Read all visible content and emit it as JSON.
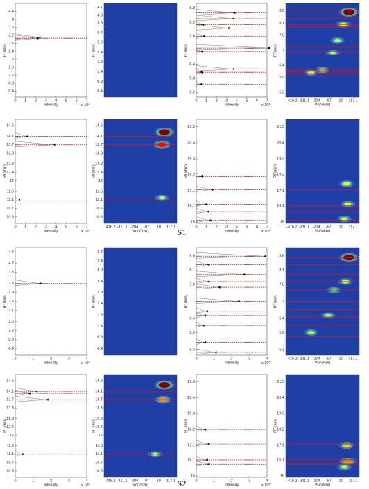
{
  "panel_labels": [
    "S1",
    "S2"
  ],
  "chart_data": [
    {
      "type": "line",
      "ylabel": "RT(min)",
      "xlabel": "Intensity",
      "scale_base": "x 10",
      "scale_exp": 4,
      "ylim": [
        0.1,
        4.8
      ],
      "yticks": [
        0.4,
        0.8,
        1.2,
        1.6,
        2,
        2.4,
        2.8,
        3.2,
        3.6,
        4,
        4.4
      ],
      "xlim": [
        0,
        7
      ],
      "xticks": [
        0,
        1,
        2,
        3,
        4,
        5,
        6,
        7
      ],
      "markers": [
        3.1,
        3.05
      ],
      "marker_intensity": [
        2.2,
        2.0
      ]
    },
    {
      "type": "heatmap",
      "ylabel": "RT(min)",
      "ylim": [
        0.1,
        4.9
      ],
      "yticks": [
        0.4,
        0.9,
        1.4,
        1.9,
        2.4,
        2.9,
        3.4,
        3.9,
        4.3,
        4.7
      ],
      "xlim": [
        -470,
        170
      ],
      "markers": [],
      "spots_rt": [],
      "spots_vc": [],
      "spots_level": []
    },
    {
      "type": "line",
      "ylabel": "RT(min)",
      "xlabel": "Intensity",
      "scale_base": "x 10",
      "scale_exp": 4,
      "ylim": [
        5,
        9
      ],
      "yticks": [
        5.2,
        5.8,
        6.4,
        7,
        7.6,
        8.2,
        8.8
      ],
      "xlim": [
        0,
        7
      ],
      "xticks": [
        0,
        1,
        2,
        3,
        4,
        5,
        6,
        7
      ],
      "markers": [
        8.6,
        8.35,
        8.1,
        7.95,
        7.6,
        7.1,
        6.95,
        6.2,
        6.1,
        6.05,
        5.55
      ],
      "marker_intensity": [
        3.6,
        3.5,
        0.5,
        3.0,
        0.6,
        7.0,
        0.4,
        3.5,
        0.3,
        0.4,
        0.3
      ]
    },
    {
      "type": "heatmap",
      "ylabel": "RT(min)",
      "xlabel": "Vc(V/cm)",
      "ylim": [
        5.1,
        8.9
      ],
      "yticks": [
        5.3,
        5.9,
        6.4,
        7,
        7.6,
        8.1,
        8.6
      ],
      "xlim": [
        -470,
        170
      ],
      "xticks": [
        -416.2,
        -311.1,
        -204,
        -97,
        10,
        117.1
      ],
      "markers": [
        8.55,
        8.3,
        8.05,
        7.95,
        7.15,
        6.95,
        6.2,
        6.15,
        6.05
      ],
      "spots_rt": [
        8.55,
        8.05,
        7.4,
        6.9,
        6.2,
        6.1
      ],
      "spots_vc": [
        80,
        30,
        -20,
        -60,
        -150,
        -250
      ],
      "spots_level": [
        1.0,
        0.45,
        0.3,
        0.3,
        0.35,
        0.3
      ]
    },
    {
      "type": "line",
      "ylabel": "RT(min)",
      "xlabel": "Intensity",
      "scale_base": "x 10",
      "scale_exp": 4,
      "ylim": [
        10,
        14.9
      ],
      "yticks": [
        10.3,
        10.7,
        11.1,
        11.5,
        12,
        12.4,
        12.8,
        13.3,
        13.7,
        14.1,
        14.6
      ],
      "xlim": [
        0,
        7
      ],
      "xticks": [
        0,
        1,
        2,
        3,
        4,
        5,
        6,
        7
      ],
      "markers": [
        14.1,
        13.7,
        11.1
      ],
      "marker_intensity": [
        1.0,
        3.7,
        0.2
      ]
    },
    {
      "type": "heatmap",
      "ylabel": "RT(min)",
      "xlabel": "Vc(V/cm)",
      "ylim": [
        10,
        14.9
      ],
      "yticks": [
        10.3,
        10.7,
        11.1,
        11.5,
        12,
        12.4,
        12.8,
        13.3,
        13.7,
        14.1,
        14.6
      ],
      "xlim": [
        -470,
        170
      ],
      "xticks": [
        -416.2,
        -311.1,
        -204,
        -97,
        10,
        117.1
      ],
      "markers": [
        14.1,
        13.7,
        11.1
      ],
      "spots_rt": [
        14.3,
        13.7,
        11.2
      ],
      "spots_vc": [
        60,
        40,
        40
      ],
      "spots_level": [
        1.0,
        0.8,
        0.3
      ]
    },
    {
      "type": "line",
      "ylabel": "RT(min)",
      "xlabel": "Intensity",
      "scale_base": "x 10",
      "scale_exp": 4,
      "ylim": [
        14.9,
        22
      ],
      "yticks": [
        15,
        16.1,
        17.1,
        18.2,
        19.3,
        20.4,
        21.5
      ],
      "xlim": [
        0,
        7
      ],
      "xticks": [
        0,
        1,
        2,
        3,
        4,
        5,
        6,
        7
      ],
      "markers": [
        18.1,
        17.2,
        16.2,
        15.7,
        15.1
      ],
      "marker_intensity": [
        0.4,
        1.4,
        0.8,
        1.0,
        1.2
      ]
    },
    {
      "type": "heatmap",
      "ylabel": "RT(min)",
      "xlabel": "Vc(V/cm)",
      "ylim": [
        14.9,
        22
      ],
      "yticks": [
        15,
        16.1,
        17.1,
        18.2,
        19.3,
        20.4,
        21.5
      ],
      "xlim": [
        -470,
        170
      ],
      "xticks": [
        -416.2,
        -311.1,
        -204,
        -97,
        10,
        117.1
      ],
      "markers": [
        17.2,
        16.1,
        15.7,
        15.1
      ],
      "spots_rt": [
        17.6,
        16.2,
        15.2
      ],
      "spots_vc": [
        60,
        70,
        40
      ],
      "spots_level": [
        0.4,
        0.4,
        0.3
      ]
    },
    {
      "type": "line",
      "ylabel": "RT(min)",
      "xlabel": "Intensity",
      "scale_base": "x 10",
      "scale_exp": 5,
      "ylim": [
        0.1,
        4.9
      ],
      "yticks": [
        0.4,
        0.8,
        1.2,
        1.6,
        2.1,
        2.5,
        2.9,
        3.3,
        3.8,
        4.2,
        4.7
      ],
      "xlim": [
        0,
        4
      ],
      "xticks": [
        0,
        1,
        2,
        3,
        4
      ],
      "markers": [
        3.3
      ],
      "marker_intensity": [
        1.3
      ]
    },
    {
      "type": "heatmap",
      "ylabel": "RT(min)",
      "ylim": [
        0.1,
        4.9
      ],
      "yticks": [
        0.4,
        0.9,
        1.4,
        1.9,
        2.4,
        2.9,
        3.4,
        3.9,
        4.3,
        4.7
      ],
      "xlim": [
        -470,
        170
      ],
      "markers": [],
      "spots_rt": [],
      "spots_vc": [],
      "spots_level": []
    },
    {
      "type": "line",
      "ylabel": "RT(min)",
      "xlabel": "Intensity",
      "scale_base": "x 10",
      "scale_exp": 5,
      "ylim": [
        5.1,
        8.9
      ],
      "yticks": [
        5.3,
        5.9,
        6.4,
        7,
        7.6,
        8.1,
        8.6
      ],
      "xlim": [
        0,
        4
      ],
      "xticks": [
        0,
        1,
        2,
        3,
        4
      ],
      "markers": [
        8.6,
        8.3,
        7.95,
        7.7,
        7.5,
        7.0,
        6.65,
        6.5,
        6.15,
        5.55,
        5.2
      ],
      "marker_intensity": [
        3.8,
        0.6,
        2.6,
        0.6,
        1.2,
        2.3,
        0.5,
        0.4,
        0.3,
        0.4,
        1.0
      ]
    },
    {
      "type": "heatmap",
      "ylabel": "RT(min)",
      "xlabel": "Vc(V/cm)",
      "ylim": [
        5.1,
        8.9
      ],
      "yticks": [
        5.3,
        5.9,
        6.4,
        7,
        7.6,
        8.1,
        8.6
      ],
      "xlim": [
        -470,
        170
      ],
      "xticks": [
        -416.2,
        -311.1,
        -204,
        -97,
        10,
        117.1
      ],
      "markers": [
        8.55,
        8.3,
        7.95,
        7.7,
        7.4,
        7.0,
        6.7,
        6.45,
        6.15,
        5.75
      ],
      "spots_rt": [
        8.55,
        7.7,
        7.4,
        6.5,
        5.9
      ],
      "spots_vc": [
        80,
        50,
        -50,
        -100,
        -250
      ],
      "spots_level": [
        1.0,
        0.4,
        0.3,
        0.3,
        0.3
      ]
    },
    {
      "type": "line",
      "ylabel": "RT(min)",
      "xlabel": "Intensity",
      "scale_base": "x 10",
      "scale_exp": 5,
      "ylim": [
        10,
        14.9
      ],
      "yticks": [
        10.3,
        10.7,
        11.1,
        11.5,
        12,
        12.4,
        12.8,
        13.3,
        13.7,
        14.1,
        14.6
      ],
      "xlim": [
        0,
        4
      ],
      "xticks": [
        0,
        1,
        2,
        3,
        4
      ],
      "markers": [
        14.1,
        14.0,
        13.7,
        11.1
      ],
      "marker_intensity": [
        1.1,
        0.7,
        1.7,
        0.3
      ]
    },
    {
      "type": "heatmap",
      "ylabel": "RT(min)",
      "xlabel": "Vc(V/cm)",
      "ylim": [
        10,
        14.9
      ],
      "yticks": [
        10.3,
        10.7,
        11.1,
        11.5,
        12,
        12.4,
        12.8,
        13.3,
        13.7,
        14.1,
        14.6
      ],
      "xlim": [
        -470,
        170
      ],
      "xticks": [
        -416.2,
        -311.1,
        -204,
        -97,
        10,
        117.1
      ],
      "markers": [
        14.1,
        13.7,
        11.1
      ],
      "spots_rt": [
        14.4,
        13.7,
        11.1
      ],
      "spots_vc": [
        60,
        50,
        -20
      ],
      "spots_level": [
        1.0,
        0.6,
        0.3
      ]
    },
    {
      "type": "line",
      "ylabel": "RT(min)",
      "xlabel": "Intensity",
      "scale_base": "x 10",
      "scale_exp": 5,
      "ylim": [
        14.9,
        22
      ],
      "yticks": [
        15,
        16.1,
        17.1,
        18.2,
        19.3,
        20.4,
        21.5
      ],
      "xlim": [
        0,
        4
      ],
      "xticks": [
        0,
        1,
        2,
        3,
        4
      ],
      "markers": [
        18.2,
        17.2,
        16.1,
        15.8
      ],
      "marker_intensity": [
        0.4,
        0.6,
        0.5,
        0.6
      ]
    },
    {
      "type": "heatmap",
      "ylabel": "RT(min)",
      "xlabel": "Vc(V/cm)",
      "ylim": [
        14.9,
        22
      ],
      "yticks": [
        15,
        16.1,
        17.1,
        18.2,
        19.3,
        20.4,
        21.5
      ],
      "xlim": [
        -470,
        170
      ],
      "xticks": [
        -416.2,
        -311.1,
        -204,
        -97,
        10,
        117.1
      ],
      "markers": [
        17.2,
        16.1,
        15.8
      ],
      "spots_rt": [
        17.1,
        16.0,
        15.6
      ],
      "spots_vc": [
        60,
        70,
        40
      ],
      "spots_level": [
        0.5,
        0.6,
        0.3
      ]
    }
  ]
}
